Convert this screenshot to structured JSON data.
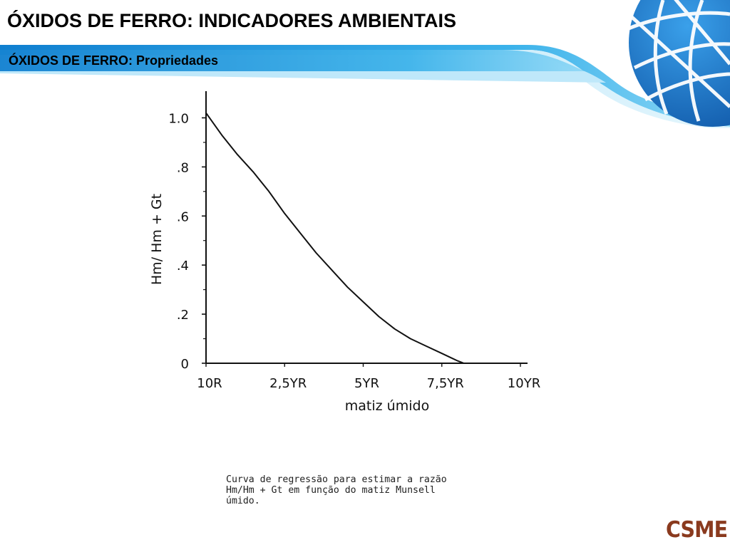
{
  "slide": {
    "title": "ÓXIDOS DE FERRO: INDICADORES AMBIENTAIS",
    "subtitle": "ÓXIDOS DE FERRO: Propriedades",
    "caption_lines": [
      "Curva de regressão para estimar a razão",
      "Hm/Hm + Gt em função do matiz Munsell",
      "úmido."
    ],
    "logo": "CSME",
    "colors": {
      "header_blue": "#1e8fd8",
      "header_light": "#6cc6ef",
      "globe": "#1a72c6",
      "logo": "#8a3a1e"
    }
  },
  "chart_data": {
    "type": "line",
    "xlabel": "matiz úmido",
    "ylabel": "Hm/ Hm + Gt",
    "x_ticks": [
      "10R",
      "2,5YR",
      "5YR",
      "7,5YR",
      "10YR"
    ],
    "y_ticks": [
      "0",
      ".2",
      ".4",
      ".6",
      ".8",
      "1.0"
    ],
    "y_tick_values": [
      0,
      0.2,
      0.4,
      0.6,
      0.8,
      1.0
    ],
    "xlim": [
      0,
      10
    ],
    "ylim": [
      0,
      1.1
    ],
    "grid": false,
    "series": [
      {
        "x": [
          0,
          0.5,
          1,
          1.5,
          2,
          2.5,
          3,
          3.5,
          4,
          4.5,
          5,
          5.5,
          6,
          6.5,
          7,
          7.5,
          8,
          8.2
        ],
        "y": [
          1.02,
          0.93,
          0.85,
          0.78,
          0.7,
          0.61,
          0.53,
          0.45,
          0.38,
          0.31,
          0.25,
          0.19,
          0.14,
          0.1,
          0.07,
          0.04,
          0.01,
          0.0
        ]
      }
    ]
  }
}
